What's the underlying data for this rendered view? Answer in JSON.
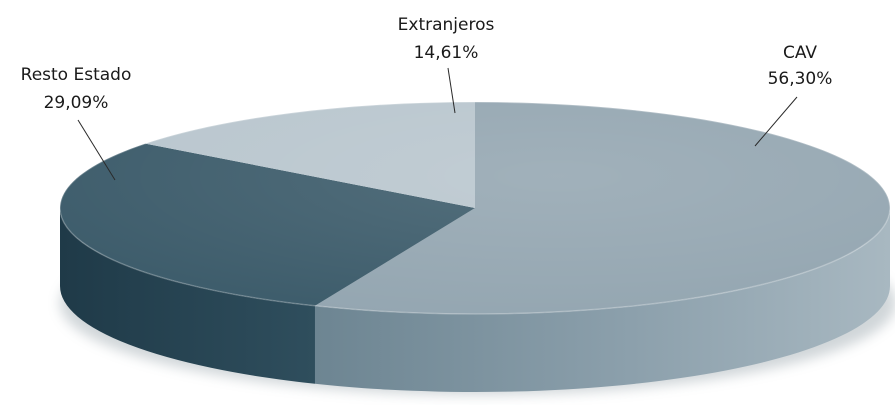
{
  "chart_data": {
    "type": "pie",
    "three_d": true,
    "slices": [
      {
        "name": "CAV",
        "value": 56.3,
        "label": "56,30%",
        "color": "#94a6b1"
      },
      {
        "name": "Resto Estado",
        "value": 29.09,
        "label": "29,09%",
        "color": "#3d5c6b"
      },
      {
        "name": "Extranjeros",
        "value": 14.61,
        "label": "14,61%",
        "color": "#b9c6ce"
      }
    ],
    "legend": "none"
  }
}
